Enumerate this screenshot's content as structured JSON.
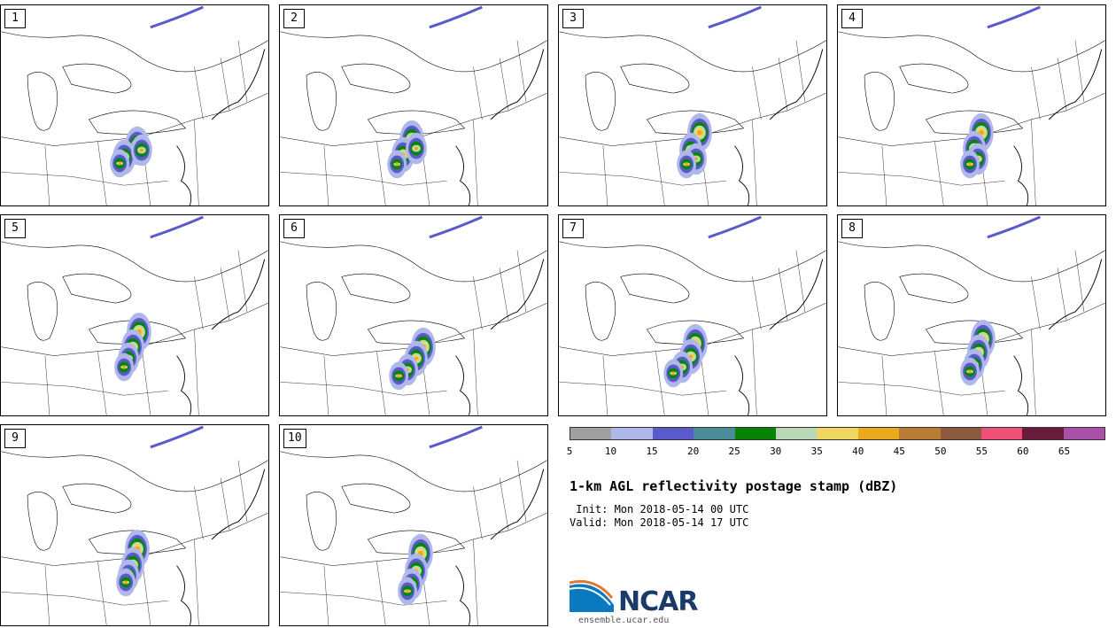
{
  "panels": [
    {
      "label": "1",
      "core": [
        150,
        175
      ],
      "blobs": [
        [
          155,
          165
        ],
        [
          140,
          178
        ],
        [
          160,
          170
        ],
        [
          135,
          185
        ]
      ]
    },
    {
      "label": "2",
      "core": [
        462,
        175
      ],
      "blobs": [
        [
          465,
          158
        ],
        [
          455,
          175
        ],
        [
          470,
          168
        ],
        [
          448,
          186
        ]
      ]
    },
    {
      "label": "3",
      "core": [
        785,
        168
      ],
      "blobs": [
        [
          790,
          150
        ],
        [
          780,
          170
        ],
        [
          786,
          180
        ],
        [
          775,
          186
        ]
      ]
    },
    {
      "label": "4",
      "core": [
        1105,
        168
      ],
      "blobs": [
        [
          1108,
          150
        ],
        [
          1100,
          168
        ],
        [
          1104,
          180
        ],
        [
          1095,
          186
        ]
      ]
    },
    {
      "label": "5",
      "core": [
        150,
        393
      ],
      "blobs": [
        [
          157,
          375
        ],
        [
          150,
          392
        ],
        [
          145,
          405
        ],
        [
          140,
          415
        ]
      ]
    },
    {
      "label": "6",
      "core": [
        468,
        408
      ],
      "blobs": [
        [
          478,
          392
        ],
        [
          470,
          405
        ],
        [
          460,
          418
        ],
        [
          450,
          425
        ]
      ]
    },
    {
      "label": "7",
      "core": [
        782,
        403
      ],
      "blobs": [
        [
          785,
          388
        ],
        [
          780,
          403
        ],
        [
          770,
          415
        ],
        [
          760,
          422
        ]
      ]
    },
    {
      "label": "8",
      "core": [
        1105,
        398
      ],
      "blobs": [
        [
          1110,
          383
        ],
        [
          1105,
          398
        ],
        [
          1100,
          412
        ],
        [
          1095,
          420
        ]
      ]
    },
    {
      "label": "9",
      "core": [
        150,
        638
      ],
      "blobs": [
        [
          155,
          620
        ],
        [
          150,
          638
        ],
        [
          145,
          650
        ],
        [
          142,
          658
        ]
      ]
    },
    {
      "label": "10",
      "core": [
        468,
        650
      ],
      "blobs": [
        [
          475,
          625
        ],
        [
          470,
          645
        ],
        [
          465,
          660
        ],
        [
          460,
          668
        ]
      ]
    }
  ],
  "colorbar": {
    "colors": [
      "#a0a0a0",
      "#b0b8ea",
      "#5a5acd",
      "#4a8c98",
      "#078407",
      "#b8d8b8",
      "#efd660",
      "#ebaa1e",
      "#b97c32",
      "#8e5a3e",
      "#ef5078",
      "#6a1a3a",
      "#aa50aa"
    ],
    "ticks": [
      "5",
      "10",
      "15",
      "20",
      "25",
      "30",
      "35",
      "40",
      "45",
      "50",
      "55",
      "60",
      "65"
    ]
  },
  "title": "1-km AGL reflectivity postage stamp (dBZ)",
  "init": " Init: Mon 2018-05-14 00 UTC",
  "valid": "Valid: Mon 2018-05-14 17 UTC",
  "logo_text": "NCAR",
  "url": "ensemble.ucar.edu"
}
